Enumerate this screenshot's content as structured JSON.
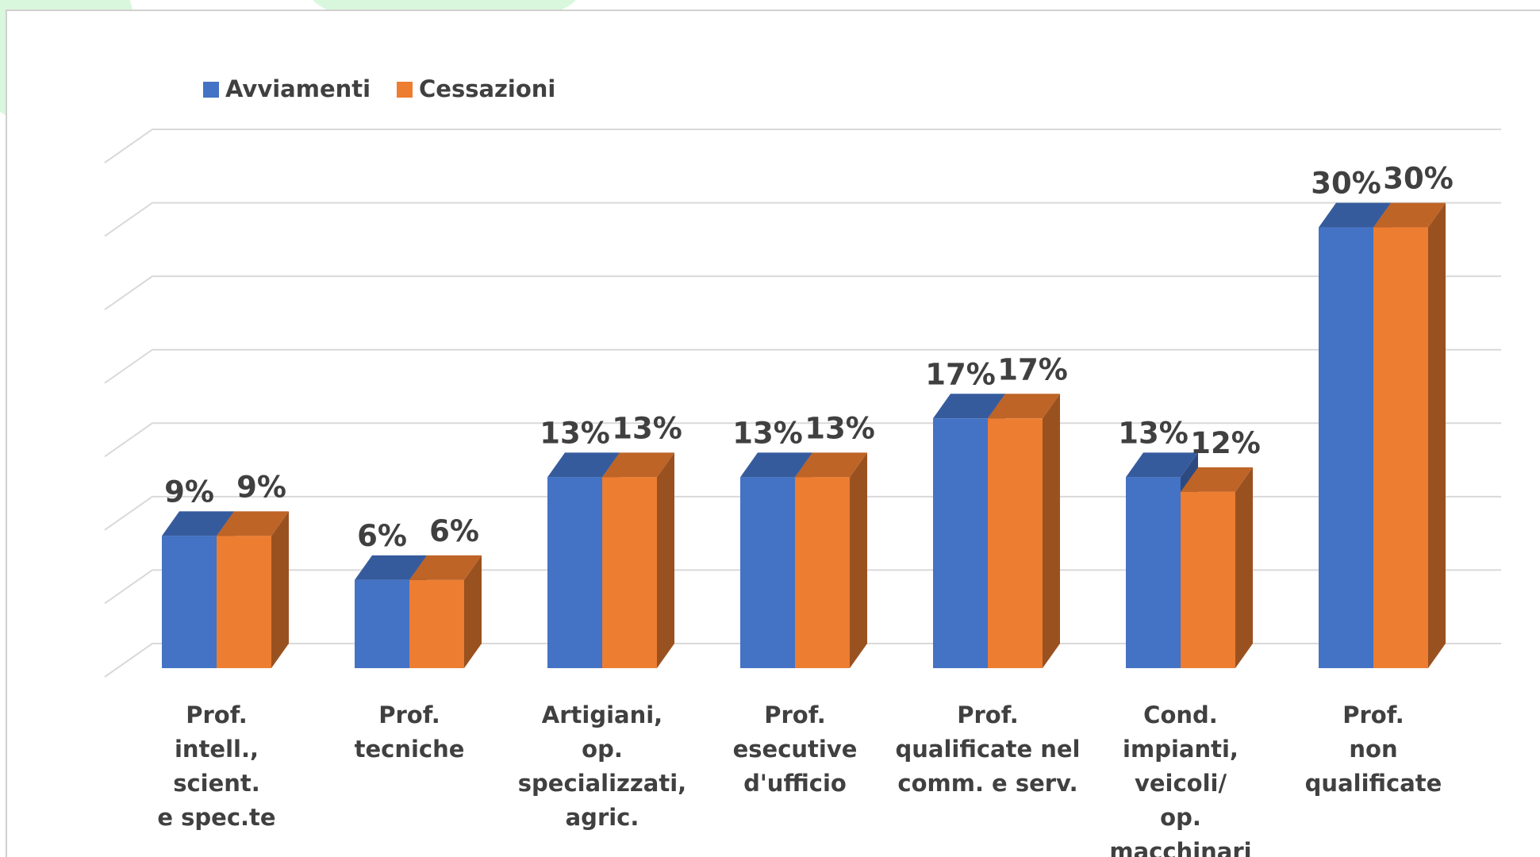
{
  "chart_data": {
    "type": "bar3d",
    "categories": [
      "Prof.\nintell.,\nscient.\ne spec.te",
      "Prof.\ntecniche",
      "Artigiani,\nop.\nspecializzati,\nagric.",
      "Prof.\nesecutive\nd'ufficio",
      "Prof.\nqualificate nel\ncomm. e serv.",
      "Cond.\nimpianti,\nveicoli/\nop. macchinari",
      "Prof.\nnon\nqualificate"
    ],
    "series": [
      {
        "name": "Avviamenti",
        "color": "#4472c4",
        "values": [
          9,
          6,
          13,
          13,
          17,
          13,
          30
        ],
        "value_labels": [
          "9%",
          "6%",
          "13%",
          "13%",
          "17%",
          "13%",
          "30%"
        ]
      },
      {
        "name": "Cessazioni",
        "color": "#ed7d31",
        "values": [
          9,
          6,
          13,
          13,
          17,
          12,
          30
        ],
        "value_labels": [
          "9%",
          "6%",
          "13%",
          "13%",
          "17%",
          "12%",
          "30%"
        ]
      }
    ],
    "ylim": [
      0,
      35
    ],
    "yticks": [
      0,
      5,
      10,
      15,
      20,
      25,
      30,
      35
    ],
    "grid": true,
    "legend": "top-left"
  }
}
